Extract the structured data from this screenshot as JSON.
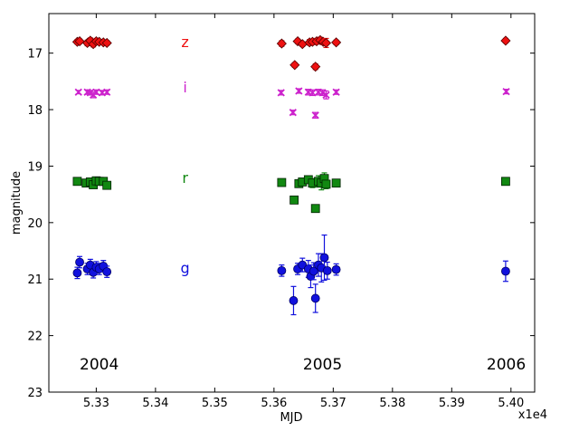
{
  "chart_data": {
    "type": "scatter",
    "xlabel": "MJD",
    "ylabel": "magnitude",
    "x_multiplier_label": "x1e4",
    "xlim": [
      5.322,
      5.404
    ],
    "ylim": [
      23,
      16.3
    ],
    "y_inverted": true,
    "grid": false,
    "x_tick_labels": [
      "5.33",
      "5.34",
      "5.35",
      "5.36",
      "5.37",
      "5.38",
      "5.39",
      "5.40"
    ],
    "x_ticks": [
      5.33,
      5.34,
      5.35,
      5.36,
      5.37,
      5.38,
      5.39,
      5.4
    ],
    "y_tick_labels": [
      "17",
      "18",
      "19",
      "20",
      "21",
      "22",
      "23"
    ],
    "y_ticks": [
      17,
      18,
      19,
      20,
      21,
      22,
      23
    ],
    "annotations": [
      {
        "text": "2004",
        "x": 5.3305,
        "y": 22.5,
        "color": "#000000"
      },
      {
        "text": "2005",
        "x": 5.3682,
        "y": 22.5,
        "color": "#000000"
      },
      {
        "text": "2006",
        "x": 5.3992,
        "y": 22.5,
        "color": "#000000"
      }
    ],
    "series": [
      {
        "band_label": "z",
        "label_x": 5.345,
        "label_y": 16.8,
        "marker": "diamond",
        "color": "#ee1111",
        "edge": "#550000",
        "points": [
          {
            "x": 5.3268,
            "y": 16.8,
            "err": 0.04
          },
          {
            "x": 5.3272,
            "y": 16.79,
            "err": 0.04
          },
          {
            "x": 5.3285,
            "y": 16.82,
            "err": 0.05
          },
          {
            "x": 5.329,
            "y": 16.78,
            "err": 0.05
          },
          {
            "x": 5.3295,
            "y": 16.84,
            "err": 0.05
          },
          {
            "x": 5.33,
            "y": 16.79,
            "err": 0.05
          },
          {
            "x": 5.3305,
            "y": 16.8,
            "err": 0.04
          },
          {
            "x": 5.3312,
            "y": 16.81,
            "err": 0.04
          },
          {
            "x": 5.3318,
            "y": 16.82,
            "err": 0.04
          },
          {
            "x": 5.3613,
            "y": 16.83,
            "err": 0.05
          },
          {
            "x": 5.3635,
            "y": 17.21,
            "err": 0.04
          },
          {
            "x": 5.364,
            "y": 16.79,
            "err": 0.04
          },
          {
            "x": 5.3648,
            "y": 16.84,
            "err": 0.04
          },
          {
            "x": 5.366,
            "y": 16.81,
            "err": 0.05
          },
          {
            "x": 5.3665,
            "y": 16.8,
            "err": 0.05
          },
          {
            "x": 5.367,
            "y": 17.24,
            "err": 0.05
          },
          {
            "x": 5.3672,
            "y": 16.79,
            "err": 0.05
          },
          {
            "x": 5.3678,
            "y": 16.77,
            "err": 0.05
          },
          {
            "x": 5.3683,
            "y": 16.8,
            "err": 0.05
          },
          {
            "x": 5.3688,
            "y": 16.82,
            "err": 0.08
          },
          {
            "x": 5.3705,
            "y": 16.81,
            "err": 0.04
          },
          {
            "x": 5.3991,
            "y": 16.78,
            "err": 0.04
          }
        ]
      },
      {
        "band_label": "i",
        "label_x": 5.345,
        "label_y": 17.6,
        "marker": "x",
        "color": "#cc22cc",
        "edge": "#cc22cc",
        "points": [
          {
            "x": 5.327,
            "y": 17.69,
            "err": 0.03
          },
          {
            "x": 5.3285,
            "y": 17.69,
            "err": 0.04
          },
          {
            "x": 5.329,
            "y": 17.7,
            "err": 0.04
          },
          {
            "x": 5.3295,
            "y": 17.74,
            "err": 0.05
          },
          {
            "x": 5.33,
            "y": 17.69,
            "err": 0.04
          },
          {
            "x": 5.331,
            "y": 17.7,
            "err": 0.04
          },
          {
            "x": 5.3318,
            "y": 17.69,
            "err": 0.04
          },
          {
            "x": 5.3612,
            "y": 17.7,
            "err": 0.04
          },
          {
            "x": 5.3632,
            "y": 18.05,
            "err": 0.04
          },
          {
            "x": 5.3642,
            "y": 17.67,
            "err": 0.04
          },
          {
            "x": 5.3658,
            "y": 17.69,
            "err": 0.05
          },
          {
            "x": 5.3665,
            "y": 17.7,
            "err": 0.05
          },
          {
            "x": 5.367,
            "y": 18.1,
            "err": 0.05
          },
          {
            "x": 5.3675,
            "y": 17.69,
            "err": 0.05
          },
          {
            "x": 5.3682,
            "y": 17.7,
            "err": 0.05
          },
          {
            "x": 5.3688,
            "y": 17.74,
            "err": 0.07
          },
          {
            "x": 5.3705,
            "y": 17.69,
            "err": 0.04
          },
          {
            "x": 5.3992,
            "y": 17.68,
            "err": 0.04
          }
        ]
      },
      {
        "band_label": "r",
        "label_x": 5.345,
        "label_y": 19.2,
        "marker": "square",
        "color": "#118811",
        "edge": "#002200",
        "points": [
          {
            "x": 5.3268,
            "y": 19.27,
            "err": 0.04
          },
          {
            "x": 5.3283,
            "y": 19.3,
            "err": 0.05
          },
          {
            "x": 5.329,
            "y": 19.28,
            "err": 0.05
          },
          {
            "x": 5.3295,
            "y": 19.33,
            "err": 0.05
          },
          {
            "x": 5.33,
            "y": 19.26,
            "err": 0.05
          },
          {
            "x": 5.3305,
            "y": 19.27,
            "err": 0.04
          },
          {
            "x": 5.3312,
            "y": 19.27,
            "err": 0.04
          },
          {
            "x": 5.3318,
            "y": 19.34,
            "err": 0.04
          },
          {
            "x": 5.3613,
            "y": 19.29,
            "err": 0.04
          },
          {
            "x": 5.3634,
            "y": 19.6,
            "err": 0.05
          },
          {
            "x": 5.3642,
            "y": 19.31,
            "err": 0.04
          },
          {
            "x": 5.3648,
            "y": 19.28,
            "err": 0.04
          },
          {
            "x": 5.3658,
            "y": 19.24,
            "err": 0.06
          },
          {
            "x": 5.3665,
            "y": 19.3,
            "err": 0.08
          },
          {
            "x": 5.367,
            "y": 19.75,
            "err": 0.06
          },
          {
            "x": 5.3675,
            "y": 19.27,
            "err": 0.1
          },
          {
            "x": 5.368,
            "y": 19.3,
            "err": 0.12
          },
          {
            "x": 5.3685,
            "y": 19.22,
            "err": 0.1
          },
          {
            "x": 5.3688,
            "y": 19.32,
            "err": 0.08
          },
          {
            "x": 5.3705,
            "y": 19.3,
            "err": 0.05
          },
          {
            "x": 5.3991,
            "y": 19.27,
            "err": 0.04
          }
        ]
      },
      {
        "band_label": "g",
        "label_x": 5.345,
        "label_y": 20.8,
        "marker": "circle",
        "color": "#1111dd",
        "edge": "#000066",
        "points": [
          {
            "x": 5.3268,
            "y": 20.89,
            "err": 0.1
          },
          {
            "x": 5.3272,
            "y": 20.7,
            "err": 0.1
          },
          {
            "x": 5.3285,
            "y": 20.82,
            "err": 0.1
          },
          {
            "x": 5.329,
            "y": 20.75,
            "err": 0.1
          },
          {
            "x": 5.3295,
            "y": 20.88,
            "err": 0.1
          },
          {
            "x": 5.33,
            "y": 20.79,
            "err": 0.1
          },
          {
            "x": 5.3305,
            "y": 20.82,
            "err": 0.1
          },
          {
            "x": 5.3312,
            "y": 20.77,
            "err": 0.1
          },
          {
            "x": 5.3318,
            "y": 20.87,
            "err": 0.1
          },
          {
            "x": 5.3613,
            "y": 20.85,
            "err": 0.1
          },
          {
            "x": 5.3633,
            "y": 21.38,
            "err": 0.25
          },
          {
            "x": 5.364,
            "y": 20.82,
            "err": 0.1
          },
          {
            "x": 5.3648,
            "y": 20.75,
            "err": 0.12
          },
          {
            "x": 5.3658,
            "y": 20.82,
            "err": 0.15
          },
          {
            "x": 5.3662,
            "y": 20.95,
            "err": 0.2
          },
          {
            "x": 5.3667,
            "y": 20.86,
            "err": 0.15
          },
          {
            "x": 5.367,
            "y": 21.34,
            "err": 0.25
          },
          {
            "x": 5.3675,
            "y": 20.75,
            "err": 0.2
          },
          {
            "x": 5.368,
            "y": 20.8,
            "err": 0.25
          },
          {
            "x": 5.3685,
            "y": 20.62,
            "err": 0.4
          },
          {
            "x": 5.369,
            "y": 20.85,
            "err": 0.15
          },
          {
            "x": 5.3705,
            "y": 20.83,
            "err": 0.1
          },
          {
            "x": 5.3991,
            "y": 20.86,
            "err": 0.18
          }
        ]
      }
    ]
  }
}
